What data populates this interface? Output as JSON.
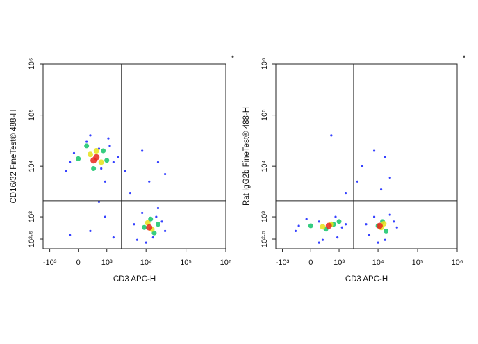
{
  "chart_data": [
    {
      "type": "scatter",
      "scale": "biexponential",
      "x_label": "CD3 APC-H",
      "y_label": "CD16/32 FineTest® 488-H",
      "corner_mark": "*",
      "xlim": [
        -1500,
        1000000
      ],
      "ylim": [
        150,
        1000000
      ],
      "xticks": [
        {
          "value": -1000,
          "label": "-10³"
        },
        0,
        {
          "value": 1000,
          "label": "10³"
        },
        {
          "value": 10000,
          "label": "10⁴"
        },
        {
          "value": 100000,
          "label": "10⁵"
        },
        {
          "value": 1000000,
          "label": "10⁶"
        }
      ],
      "yticks": [
        {
          "value": 316,
          "label": "10²·⁵"
        },
        {
          "value": 1000,
          "label": "10³"
        },
        {
          "value": 10000,
          "label": "10⁴"
        },
        {
          "value": 100000,
          "label": "10⁵"
        },
        {
          "value": 1000000,
          "label": "10⁶"
        }
      ],
      "gates": {
        "x": 2400,
        "y": 2100
      },
      "series": [
        {
          "color": "#1f2cff",
          "x": [
            -300,
            200,
            1200,
            900,
            -100,
            1500,
            300,
            700,
            -200,
            1100,
            600,
            6000,
            25000,
            15000,
            8000,
            30000,
            5000,
            20000,
            10000,
            18000,
            3000,
            8000,
            20000,
            600,
            300,
            1500,
            -200,
            4000,
            12000,
            30000,
            900,
            2000
          ],
          "y": [
            8000,
            30000,
            25000,
            5000,
            18000,
            12000,
            40000,
            9000,
            12000,
            35000,
            22000,
            300,
            800,
            350,
            1200,
            500,
            700,
            1500,
            250,
            1000,
            8000,
            20000,
            12000,
            2000,
            500,
            350,
            400,
            3000,
            5000,
            7000,
            1000,
            15000
          ]
        },
        {
          "color": "#13c46a",
          "x": [
            0,
            800,
            400,
            1000,
            200,
            9000,
            16000,
            13000,
            20000
          ],
          "y": [
            14000,
            20000,
            9000,
            13000,
            25000,
            600,
            450,
            900,
            700
          ]
        },
        {
          "color": "#e6e21a",
          "x": [
            300,
            700,
            500,
            14000,
            11000
          ],
          "y": [
            17000,
            12000,
            20000,
            550,
            750
          ]
        },
        {
          "color": "#e8261c",
          "x": [
            500,
            400,
            12000
          ],
          "y": [
            15000,
            13000,
            600
          ]
        }
      ]
    },
    {
      "type": "scatter",
      "scale": "biexponential",
      "x_label": "CD3 APC-H",
      "y_label": "Rat IgG2b FineTest® 488-H",
      "corner_mark": "*",
      "xlim": [
        -1500,
        1000000
      ],
      "ylim": [
        150,
        1000000
      ],
      "xticks": [
        {
          "value": -1000,
          "label": "-10³"
        },
        0,
        {
          "value": 1000,
          "label": "10³"
        },
        {
          "value": 10000,
          "label": "10⁴"
        },
        {
          "value": 100000,
          "label": "10⁵"
        },
        {
          "value": 1000000,
          "label": "10⁶"
        }
      ],
      "yticks": [
        {
          "value": 316,
          "label": "10²·⁵"
        },
        {
          "value": 1000,
          "label": "10³"
        },
        {
          "value": 10000,
          "label": "10⁴"
        },
        {
          "value": 100000,
          "label": "10⁵"
        },
        {
          "value": 1000000,
          "label": "10⁶"
        }
      ],
      "gates": {
        "x": 2400,
        "y": 2100
      },
      "series": [
        {
          "color": "#1f2cff",
          "x": [
            -400,
            200,
            1200,
            900,
            -100,
            1500,
            300,
            -300,
            800,
            6000,
            25000,
            15000,
            8000,
            30000,
            5000,
            20000,
            10000,
            3000,
            8000,
            1500,
            20000,
            600,
            4000,
            12000,
            200,
            15000
          ],
          "y": [
            500,
            800,
            600,
            350,
            900,
            700,
            300,
            650,
            1000,
            400,
            800,
            300,
            1000,
            600,
            700,
            1100,
            250,
            5000,
            20000,
            3000,
            6000,
            40000,
            10000,
            3500,
            250,
            15000
          ]
        },
        {
          "color": "#13c46a",
          "x": [
            0,
            700,
            400,
            1000,
            10000,
            16000,
            13000
          ],
          "y": [
            650,
            700,
            550,
            800,
            650,
            500,
            800
          ]
        },
        {
          "color": "#e6e21a",
          "x": [
            300,
            600,
            12000,
            14000
          ],
          "y": [
            620,
            700,
            600,
            720
          ]
        },
        {
          "color": "#e8261c",
          "x": [
            500,
            11000
          ],
          "y": [
            650,
            650
          ]
        }
      ]
    }
  ]
}
